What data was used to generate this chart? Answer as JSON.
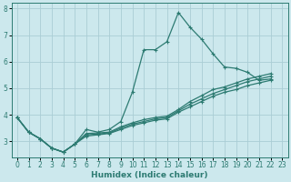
{
  "xlabel": "Humidex (Indice chaleur)",
  "background_color": "#cce8ed",
  "grid_color": "#aacdd5",
  "line_color": "#2d7b72",
  "xlim": [
    -0.5,
    23.5
  ],
  "ylim": [
    2.4,
    8.2
  ],
  "yticks": [
    3,
    4,
    5,
    6,
    7,
    8
  ],
  "xticks": [
    0,
    1,
    2,
    3,
    4,
    5,
    6,
    7,
    8,
    9,
    10,
    11,
    12,
    13,
    14,
    15,
    16,
    17,
    18,
    19,
    20,
    21,
    22,
    23
  ],
  "lines": [
    {
      "x": [
        0,
        1,
        2,
        3,
        4,
        5,
        6,
        7,
        8,
        9,
        10,
        11,
        12,
        13,
        14,
        15,
        16,
        17,
        18,
        19,
        20,
        21,
        22
      ],
      "y": [
        3.9,
        3.35,
        3.1,
        2.75,
        2.6,
        2.9,
        3.45,
        3.35,
        3.45,
        3.75,
        4.85,
        6.45,
        6.45,
        6.75,
        7.85,
        7.3,
        6.85,
        6.3,
        5.8,
        5.75,
        5.6,
        5.3,
        5.35
      ]
    },
    {
      "x": [
        0,
        1,
        2,
        3,
        4,
        5,
        6,
        7,
        8,
        9,
        10,
        11,
        12,
        13,
        14,
        15,
        16,
        17,
        18,
        19,
        20,
        21,
        22
      ],
      "y": [
        3.9,
        3.35,
        3.1,
        2.75,
        2.6,
        2.9,
        3.2,
        3.25,
        3.3,
        3.45,
        3.6,
        3.7,
        3.8,
        3.85,
        4.1,
        4.3,
        4.5,
        4.7,
        4.85,
        4.95,
        5.1,
        5.2,
        5.3
      ]
    },
    {
      "x": [
        0,
        1,
        2,
        3,
        4,
        5,
        6,
        7,
        8,
        9,
        10,
        11,
        12,
        13,
        14,
        15,
        16,
        17,
        18,
        19,
        20,
        21,
        22
      ],
      "y": [
        3.9,
        3.35,
        3.1,
        2.75,
        2.6,
        2.9,
        3.25,
        3.28,
        3.32,
        3.5,
        3.65,
        3.75,
        3.85,
        3.9,
        4.15,
        4.4,
        4.6,
        4.8,
        4.95,
        5.1,
        5.25,
        5.35,
        5.45
      ]
    },
    {
      "x": [
        0,
        1,
        2,
        3,
        4,
        5,
        6,
        7,
        8,
        9,
        10,
        11,
        12,
        13,
        14,
        15,
        16,
        17,
        18,
        19,
        20,
        21,
        22
      ],
      "y": [
        3.9,
        3.35,
        3.1,
        2.75,
        2.6,
        2.9,
        3.3,
        3.32,
        3.35,
        3.55,
        3.7,
        3.82,
        3.9,
        3.95,
        4.2,
        4.5,
        4.72,
        4.95,
        5.05,
        5.2,
        5.35,
        5.45,
        5.55
      ]
    }
  ]
}
